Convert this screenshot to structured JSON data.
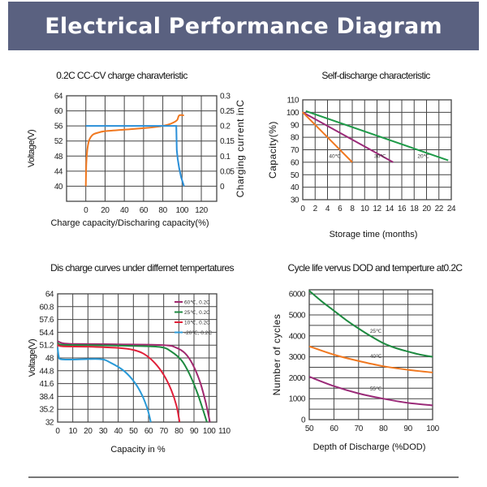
{
  "header": {
    "title": "Electrical Performance Diagram",
    "background": "#5a6180"
  },
  "chart_data": [
    {
      "type": "line",
      "title": "0.2C CC-CV charge charavteristic",
      "xlabel": "Charge capacity/Discharing capacity(%)",
      "ylabel": "Voltage(V)",
      "y2label": "Charging current inC",
      "xlim": [
        -20,
        136
      ],
      "ylim": [
        36,
        64
      ],
      "y2lim": [
        -0.05,
        0.3
      ],
      "xticks": [
        0,
        20,
        40,
        60,
        80,
        100,
        120
      ],
      "yticks": [
        40,
        44,
        48,
        52,
        56,
        60,
        64
      ],
      "y2ticks": [
        "0",
        "0.05",
        "0.1",
        "0.15",
        "0.2",
        "0.25",
        "0.3"
      ],
      "grid": true,
      "series": [
        {
          "axis": "left",
          "color": "#f07820",
          "points": [
            [
              0,
              40
            ],
            [
              0.5,
              46
            ],
            [
              1.5,
              49.5
            ],
            [
              3,
              51.8
            ],
            [
              5,
              53
            ],
            [
              8,
              53.8
            ],
            [
              14,
              54.3
            ],
            [
              20,
              54.6
            ],
            [
              40,
              55
            ],
            [
              60,
              55.4
            ],
            [
              75,
              55.8
            ],
            [
              85,
              56.3
            ],
            [
              91,
              56.9
            ],
            [
              95,
              57.6
            ],
            [
              97,
              58.8
            ],
            [
              102,
              58.8
            ]
          ]
        },
        {
          "axis": "right",
          "color": "#2a8fd8",
          "points": [
            [
              0,
              0.2
            ],
            [
              94,
              0.2
            ],
            [
              94.5,
              0.12
            ],
            [
              95.5,
              0.09
            ],
            [
              97,
              0.06
            ],
            [
              99,
              0.03
            ],
            [
              102,
              0
            ]
          ]
        }
      ]
    },
    {
      "type": "line",
      "title": "Self-discharge characteristic",
      "xlabel": "Storage time (months)",
      "ylabel": "Capacity(%)",
      "xlim": [
        0,
        24
      ],
      "ylim": [
        30,
        110
      ],
      "xticks": [
        0,
        2,
        4,
        6,
        8,
        10,
        12,
        14,
        16,
        18,
        20,
        22,
        24
      ],
      "yticks": [
        30,
        40,
        50,
        60,
        70,
        80,
        90,
        100,
        110
      ],
      "grid": true,
      "series": [
        {
          "name": "20℃",
          "color": "#1e9a48",
          "points": [
            [
              0.5,
              101
            ],
            [
              23.5,
              61.5
            ]
          ],
          "label_at": [
            19.5,
            63.5
          ]
        },
        {
          "name": "30℃",
          "color": "#9a2a78",
          "points": [
            [
              0,
              100
            ],
            [
              14.6,
              60
            ]
          ],
          "label_at": [
            12.5,
            63.5
          ]
        },
        {
          "name": "40℃",
          "color": "#f07820",
          "points": [
            [
              0,
              100
            ],
            [
              1,
              95
            ],
            [
              8,
              60
            ]
          ],
          "label_at": [
            5.2,
            63.5
          ]
        }
      ]
    },
    {
      "type": "line",
      "title": "Dis charge curves under differnet tempertatures",
      "xlabel": "Capacity in %",
      "ylabel": "Voltage(V)",
      "xlim": [
        0,
        105
      ],
      "ylim": [
        32,
        64
      ],
      "xticks": [
        0,
        10,
        20,
        30,
        40,
        50,
        60,
        70,
        80,
        90,
        100,
        110
      ],
      "yticks": [
        "32",
        "35.2",
        "38.4",
        "41.6",
        "44.8",
        "48",
        "51.2",
        "54.4",
        "57.6",
        "60.8",
        "64"
      ],
      "grid": true,
      "legend": "top-right",
      "series": [
        {
          "name": "60℃, 0.2C",
          "color": "#a0286e",
          "points": [
            [
              0,
              52.2
            ],
            [
              3,
              51.7
            ],
            [
              10,
              51.5
            ],
            [
              40,
              51.4
            ],
            [
              70,
              51.2
            ],
            [
              78,
              50.6
            ],
            [
              84,
              49.2
            ],
            [
              89,
              46.5
            ],
            [
              94,
              42
            ],
            [
              98,
              36.5
            ],
            [
              100.5,
              32
            ]
          ]
        },
        {
          "name": "25℃, 0.2C",
          "color": "#1e8a40",
          "points": [
            [
              0,
              51.8
            ],
            [
              3,
              51.3
            ],
            [
              20,
              51.2
            ],
            [
              50,
              51
            ],
            [
              68,
              50.7
            ],
            [
              75,
              49.6
            ],
            [
              82,
              47.3
            ],
            [
              87,
              44
            ],
            [
              92,
              39.5
            ],
            [
              96,
              35
            ],
            [
              98.5,
              32
            ]
          ]
        },
        {
          "name": "10℃, 0.2C",
          "color": "#e0203a",
          "points": [
            [
              0,
              51.4
            ],
            [
              3,
              50.9
            ],
            [
              20,
              50.8
            ],
            [
              40,
              50.5
            ],
            [
              50,
              50
            ],
            [
              57,
              49
            ],
            [
              64,
              46.8
            ],
            [
              70,
              43.8
            ],
            [
              75,
              40
            ],
            [
              78.5,
              36
            ],
            [
              80.5,
              32
            ]
          ]
        },
        {
          "name": "-20℃, 0.2C",
          "color": "#2a9ad8",
          "points": [
            [
              0,
              50.6
            ],
            [
              0.7,
              48.5
            ],
            [
              2,
              47.7
            ],
            [
              10,
              47.6
            ],
            [
              28,
              47.7
            ],
            [
              35,
              46.8
            ],
            [
              44,
              44.7
            ],
            [
              51,
              41.8
            ],
            [
              56,
              38.5
            ],
            [
              59.5,
              35
            ],
            [
              61.5,
              32
            ]
          ]
        }
      ]
    },
    {
      "type": "line",
      "title": "Cycle life vervus DOD and temperture at0.2C",
      "xlabel": "Depth of Discharge (%DOD)",
      "ylabel": "Number of cycles",
      "xlim": [
        50,
        100
      ],
      "ylim": [
        0,
        6200
      ],
      "xticks": [
        50,
        60,
        70,
        80,
        90,
        100
      ],
      "yticks": [
        0,
        1000,
        2000,
        3000,
        4000,
        5000,
        6000
      ],
      "grid": true,
      "series": [
        {
          "name": "25℃",
          "color": "#1e8a40",
          "points": [
            [
              50,
              6150
            ],
            [
              55,
              5650
            ],
            [
              60,
              5200
            ],
            [
              65,
              4750
            ],
            [
              70,
              4350
            ],
            [
              75,
              3980
            ],
            [
              80,
              3650
            ],
            [
              85,
              3420
            ],
            [
              90,
              3250
            ],
            [
              95,
              3100
            ],
            [
              100,
              3000
            ]
          ],
          "label_at": [
            77,
            4150
          ]
        },
        {
          "name": "40℃",
          "color": "#f07820",
          "points": [
            [
              50,
              3500
            ],
            [
              60,
              3100
            ],
            [
              70,
              2800
            ],
            [
              80,
              2550
            ],
            [
              90,
              2380
            ],
            [
              100,
              2250
            ]
          ],
          "label_at": [
            77,
            2950
          ]
        },
        {
          "name": "55℃",
          "color": "#9a2a78",
          "points": [
            [
              50,
              2050
            ],
            [
              60,
              1600
            ],
            [
              70,
              1250
            ],
            [
              80,
              1000
            ],
            [
              90,
              800
            ],
            [
              100,
              680
            ]
          ],
          "label_at": [
            77,
            1400
          ]
        }
      ]
    }
  ]
}
